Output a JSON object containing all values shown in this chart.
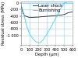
{
  "xlabel": "Depth (μm)",
  "ylabel": "Residual stress (MPa)",
  "xlim": [
    0,
    600
  ],
  "ylim": [
    -1300,
    50
  ],
  "yticks": [
    0,
    -200,
    -400,
    -600,
    -800,
    -1000
  ],
  "ytick_labels": [
    "0",
    "-200",
    "-400",
    "-600",
    "-800",
    "-1 000"
  ],
  "xticks": [
    0,
    100,
    200,
    300,
    400,
    500,
    600
  ],
  "xtick_labels": [
    "0",
    "100",
    "200",
    "300",
    "400",
    "500",
    "600"
  ],
  "grid_color": "#aaccee",
  "grid_top_color": "#88bbdd",
  "background_color": "#ffffff",
  "laser_shock": {
    "label": "Laser shock",
    "color": "#222222",
    "x": [
      0,
      20,
      40,
      60,
      80,
      100,
      130,
      160,
      200,
      250,
      300,
      350,
      400,
      450,
      480,
      500,
      520,
      540,
      560,
      580,
      600
    ],
    "y": [
      -100,
      -320,
      -390,
      -410,
      -430,
      -445,
      -440,
      -435,
      -430,
      -415,
      -405,
      -395,
      -385,
      -370,
      -360,
      -350,
      -330,
      -300,
      -290,
      -275,
      -265
    ]
  },
  "burnishing": {
    "label": "Burnishing",
    "color": "#44ccee",
    "x": [
      0,
      30,
      60,
      100,
      150,
      180,
      200,
      220,
      250,
      300,
      350,
      400,
      450,
      500,
      550,
      600
    ],
    "y": [
      -80,
      -350,
      -700,
      -980,
      -1150,
      -1210,
      -1230,
      -1220,
      -1150,
      -950,
      -720,
      -470,
      -200,
      0,
      50,
      60
    ]
  },
  "legend_fontsize": 3.8,
  "tick_fontsize": 3.5,
  "label_fontsize": 3.8,
  "linewidth": 0.6
}
